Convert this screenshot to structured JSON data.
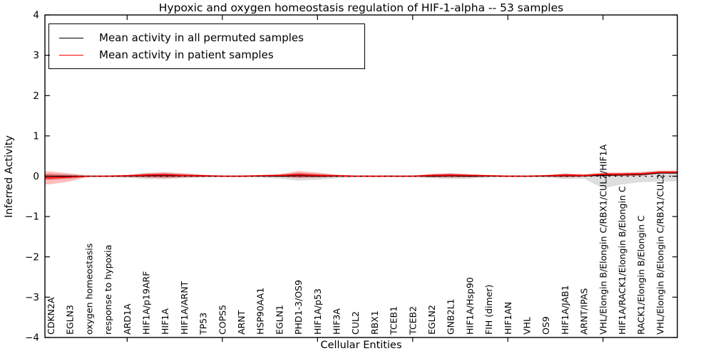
{
  "header": {
    "title": "Hypoxic and oxygen homeostasis regulation of HIF-1-alpha -- 53 samples"
  },
  "legend": {
    "entries": [
      {
        "label": "Mean activity in all permuted samples",
        "color": "#000000"
      },
      {
        "label": "Mean activity in patient samples",
        "color": "#ff0000"
      }
    ]
  },
  "chart_data": {
    "type": "line",
    "title": "Hypoxic and oxygen homeostasis regulation of HIF-1-alpha -- 53 samples",
    "xlabel": "Cellular Entities",
    "ylabel": "Inferred Activity",
    "ylim": [
      -4,
      4
    ],
    "ytick_labels": [
      "4",
      "3",
      "2",
      "1",
      "0",
      "−1",
      "−2",
      "−3",
      "−4"
    ],
    "ytick_values": [
      4,
      3,
      2,
      1,
      0,
      -1,
      -2,
      -3,
      -4
    ],
    "xtick_indices": [
      4,
      9,
      14,
      19,
      24,
      29
    ],
    "grid": false,
    "legend_position": "upper left",
    "zero_reference_line": true,
    "categories": [
      "CDKN2A",
      "EGLN3",
      "oxygen homeostasis",
      "response to hypoxia",
      "ARD1A",
      "HIF1A/p19ARF",
      "HIF1A",
      "HIF1A/ARNT",
      "TP53",
      "COPS5",
      "ARNT",
      "HSP90AA1",
      "EGLN1",
      "PHD1-3/OS9",
      "HIF1A/p53",
      "HIF3A",
      "CUL2",
      "RBX1",
      "TCEB1",
      "TCEB2",
      "EGLN2",
      "GNB2L1",
      "HIF1A/Hsp90",
      "FIH (dimer)",
      "HIF1AN",
      "VHL",
      "OS9",
      "HIF1A/JAB1",
      "ARNT/IPAS",
      "VHL/Elongin B/Elongin C/RBX1/CUL2/HIF1A",
      "HIF1A/RACK1/Elongin B/Elongin C",
      "RACK1/Elongin B/Elongin C",
      "VHL/Elongin B/Elongin C/RBX1/CUL2"
    ],
    "series": [
      {
        "name": "Mean activity in all permuted samples",
        "color": "#000000",
        "values": [
          0,
          0,
          0,
          0,
          0,
          0.01,
          0.01,
          0.01,
          0,
          0,
          0,
          0,
          0,
          0.01,
          0,
          0,
          0,
          0,
          0,
          0,
          0,
          0.01,
          0,
          0,
          0,
          0,
          0,
          0.01,
          0.01,
          0.02,
          0.03,
          0.04,
          0.08
        ]
      },
      {
        "name": "Mean activity in patient samples",
        "color": "#ff0000",
        "values": [
          -0.04,
          -0.02,
          0,
          0,
          0.01,
          0.03,
          0.04,
          0.02,
          0.01,
          0,
          0,
          0.01,
          0.02,
          0.04,
          0.02,
          0.01,
          0,
          0,
          0,
          0,
          0.02,
          0.03,
          0.02,
          0.01,
          0,
          0,
          0.01,
          0.03,
          0.02,
          0.05,
          0.05,
          0.06,
          0.1
        ]
      }
    ],
    "bands": [
      {
        "name": "permuted-spread-band",
        "color": "#000000",
        "opacity": 0.13,
        "upper": [
          0.06,
          0.05,
          0.02,
          0.02,
          0.04,
          0.08,
          0.09,
          0.07,
          0.04,
          0.02,
          0.02,
          0.03,
          0.05,
          0.09,
          0.07,
          0.04,
          0.02,
          0.02,
          0.02,
          0.02,
          0.05,
          0.07,
          0.05,
          0.03,
          0.02,
          0.02,
          0.03,
          0.06,
          0.05,
          0.08,
          0.09,
          0.11,
          0.13
        ],
        "lower": [
          -0.08,
          -0.06,
          -0.02,
          -0.02,
          -0.04,
          -0.07,
          -0.07,
          -0.05,
          -0.03,
          -0.02,
          -0.02,
          -0.03,
          -0.06,
          -0.11,
          -0.09,
          -0.05,
          -0.02,
          -0.02,
          -0.02,
          -0.02,
          -0.05,
          -0.07,
          -0.06,
          -0.03,
          -0.02,
          -0.02,
          -0.03,
          -0.07,
          -0.06,
          -0.3,
          -0.2,
          -0.15,
          -0.13
        ]
      },
      {
        "name": "patient-spread-band-outer",
        "color": "#ff0000",
        "opacity": 0.25,
        "upper": [
          0.12,
          0.07,
          0.01,
          0.01,
          0.02,
          0.08,
          0.1,
          0.07,
          0.03,
          0.01,
          0.01,
          0.02,
          0.05,
          0.13,
          0.09,
          0.04,
          0.01,
          0.01,
          0.01,
          0.01,
          0.06,
          0.08,
          0.05,
          0.02,
          0.01,
          0.01,
          0.02,
          0.07,
          0.04,
          0.09,
          0.09,
          0.1,
          0.14
        ],
        "lower": [
          -0.2,
          -0.13,
          -0.01,
          -0.01,
          -0.02,
          -0.04,
          -0.05,
          -0.03,
          -0.02,
          -0.01,
          -0.01,
          -0.01,
          -0.02,
          -0.05,
          -0.04,
          -0.02,
          -0.01,
          -0.01,
          -0.01,
          -0.01,
          -0.03,
          -0.04,
          -0.03,
          -0.01,
          -0.01,
          -0.01,
          -0.01,
          -0.03,
          -0.02,
          0,
          0,
          0.01,
          0.06
        ]
      },
      {
        "name": "patient-spread-band-inner",
        "color": "#ff0000",
        "opacity": 0.3,
        "upper": [
          0.06,
          0.03,
          0.005,
          0.005,
          0.01,
          0.05,
          0.06,
          0.04,
          0.02,
          0.005,
          0.005,
          0.01,
          0.03,
          0.08,
          0.05,
          0.02,
          0.005,
          0.005,
          0.005,
          0.005,
          0.04,
          0.05,
          0.03,
          0.01,
          0.005,
          0.005,
          0.01,
          0.05,
          0.03,
          0.07,
          0.07,
          0.08,
          0.12
        ],
        "lower": [
          -0.09,
          -0.06,
          -0.005,
          -0.005,
          -0.01,
          -0.02,
          -0.03,
          -0.02,
          -0.01,
          -0.005,
          -0.005,
          -0.005,
          -0.01,
          -0.03,
          -0.02,
          -0.01,
          -0.005,
          -0.005,
          -0.005,
          -0.005,
          -0.02,
          -0.02,
          -0.02,
          -0.005,
          -0.005,
          -0.005,
          -0.005,
          -0.02,
          -0.01,
          0.01,
          0.01,
          0.02,
          0.08
        ]
      }
    ]
  }
}
